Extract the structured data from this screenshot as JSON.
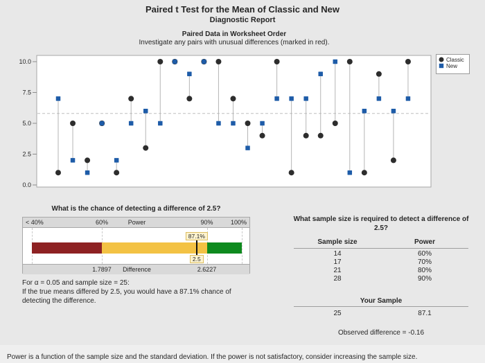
{
  "header": {
    "title": "Paired t Test for the Mean of Classic and New",
    "subtitle": "Diagnostic Report"
  },
  "chart_data": {
    "type": "scatter",
    "title": "Paired Data in Worksheet Order",
    "subtitle": "Investigate any pairs with unusual differences (marked in red).",
    "x": [
      1,
      2,
      3,
      4,
      5,
      6,
      7,
      8,
      9,
      10,
      11,
      12,
      13,
      14,
      15,
      16,
      17,
      18,
      19,
      20,
      21,
      22,
      23,
      24,
      25
    ],
    "series": [
      {
        "name": "Classic",
        "marker": "circle",
        "color": "#2d2d2d",
        "values": [
          1,
          5,
          2,
          5,
          1,
          7,
          3,
          10,
          10,
          7,
          10,
          10,
          7,
          5,
          4,
          10,
          1,
          4,
          4,
          5,
          10,
          1,
          9,
          2,
          10
        ]
      },
      {
        "name": "New",
        "marker": "square",
        "color": "#1e5ca8",
        "values": [
          7,
          2,
          1,
          5,
          2,
          5,
          6,
          5,
          10,
          9,
          10,
          5,
          5,
          3,
          5,
          7,
          7,
          7,
          9,
          10,
          1,
          6,
          7,
          6,
          7
        ]
      }
    ],
    "ylim": [
      0,
      10
    ],
    "yticks": [
      "0.0",
      "2.5",
      "5.0",
      "7.5",
      "10.0"
    ],
    "ytick_values": [
      0,
      2.5,
      5,
      7.5,
      10
    ],
    "mean_line": 5.8,
    "legend_position": "top-right",
    "grid": false,
    "connector_color": "#b5b5b5",
    "mean_line_color": "#bdbdbd"
  },
  "power_gauge": {
    "title": "What is the chance of detecting a difference of 2.5?",
    "scale_min": 40,
    "scale_max": 100,
    "ticks": [
      40,
      60,
      90,
      100
    ],
    "top_labels": [
      {
        "text": "< 40%",
        "align": "left"
      },
      {
        "text": "60%",
        "value": 60
      },
      {
        "text": "Power",
        "value": 70
      },
      {
        "text": "90%",
        "value": 90
      },
      {
        "text": "100%",
        "align": "right"
      }
    ],
    "bottom_labels": [
      {
        "text": "1.7897",
        "value": 60
      },
      {
        "text": "Difference",
        "value": 70
      },
      {
        "text": "2.6227",
        "value": 90
      }
    ],
    "segments": [
      {
        "from": 40,
        "to": 60,
        "color": "#8e2223"
      },
      {
        "from": 60,
        "to": 90,
        "color": "#f3c244"
      },
      {
        "from": 90,
        "to": 100,
        "color": "#0e8a1e"
      }
    ],
    "marker": {
      "value": 87.1,
      "top_label": "87.1%",
      "bottom_label": "2.5"
    },
    "note_lines": [
      "For α = 0.05 and sample size = 25:",
      "If the true means differed by 2.5, you would have a 87.1% chance of",
      "detecting the difference."
    ]
  },
  "sample_size_panel": {
    "title_lines": [
      "What sample size is required to detect a difference of",
      "2.5?"
    ],
    "columns": [
      "Sample size",
      "Power"
    ],
    "rows": [
      [
        "14",
        "60%"
      ],
      [
        "17",
        "70%"
      ],
      [
        "21",
        "80%"
      ],
      [
        "28",
        "90%"
      ]
    ],
    "your_sample_label": "Your Sample",
    "your_sample": [
      "25",
      "87.1"
    ],
    "observed_difference": "Observed difference = -0.16"
  },
  "footer": "Power is a function of the sample size and the standard deviation. If the power is not satisfactory, consider increasing the sample size."
}
